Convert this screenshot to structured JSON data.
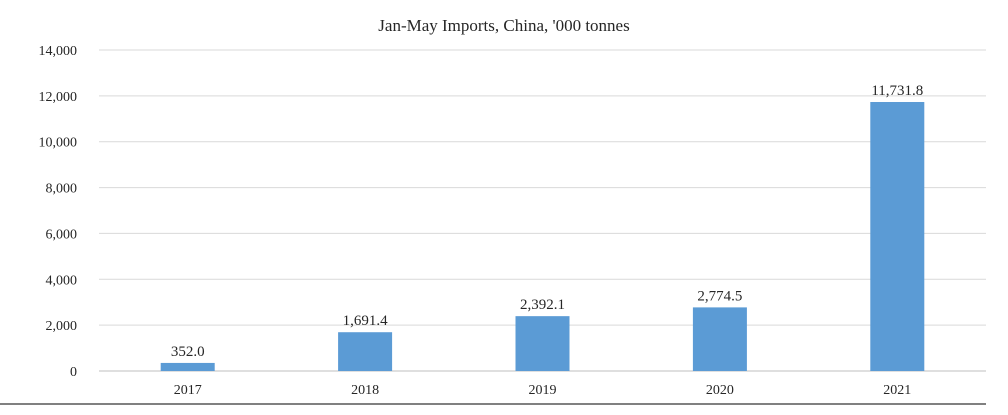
{
  "chart_data": {
    "type": "bar",
    "title": "Jan-May Imports, China, '000 tonnes",
    "xlabel": "",
    "ylabel": "",
    "categories": [
      "2017",
      "2018",
      "2019",
      "2020",
      "2021"
    ],
    "values": [
      352.0,
      1691.4,
      2392.1,
      2774.5,
      11731.8
    ],
    "data_labels": [
      "352.0",
      "1,691.4",
      "2,392.1",
      "2,774.5",
      "11,731.8"
    ],
    "ylim": [
      0,
      14000
    ],
    "yticks": [
      0,
      2000,
      4000,
      6000,
      8000,
      10000,
      12000,
      14000
    ],
    "ytick_labels": [
      "0",
      "2,000",
      "4,000",
      "6,000",
      "8,000",
      "10,000",
      "12,000",
      "14,000"
    ],
    "grid": true,
    "legend": "none",
    "colors": {
      "bar": "#5b9bd5",
      "grid": "#d9d9d9",
      "text": "#262626"
    }
  }
}
